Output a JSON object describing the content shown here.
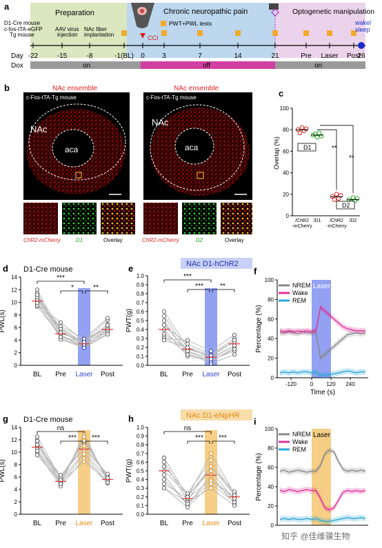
{
  "panel_labels": [
    "a",
    "b",
    "c",
    "d",
    "e",
    "f",
    "g",
    "h",
    "i"
  ],
  "timeline": {
    "left_notes": [
      "D1-Cre mouse",
      "c-fos-tTA-eGFP",
      "Tg mouse"
    ],
    "prep_title": "Preparation",
    "prep_notes": [
      [
        "AAV virus",
        "injection"
      ],
      [
        "NAc  fiber",
        "implantation"
      ]
    ],
    "pain_title": "Chronic neuropathic pain",
    "pain_note": "PWT+PWL tests",
    "opto_title": "Optogenetic manipulation",
    "cci_label": "CCI",
    "wake_label": [
      "wake/",
      "sleep"
    ],
    "day_label": "Day",
    "days": [
      "-22",
      "-15",
      "-8",
      "-1(BL)",
      "0",
      "3",
      "7",
      "14",
      "21",
      "Pre",
      "Laser",
      "Post",
      "26"
    ],
    "dox_label": "Dox",
    "dox_states": [
      "on",
      "off",
      "on"
    ],
    "colors": {
      "prep": "#dbe7bf",
      "pain": "#bcd7ee",
      "opto": "#ecd3ec",
      "square": "#f2a92b",
      "dox_on": "#9a9a9a",
      "dox_off": "#d23fa0",
      "cci": "#d22020",
      "wake": "#1d2cc8"
    }
  },
  "panel_b": {
    "images": [
      {
        "title": "NAc ensemble",
        "mouse": "c-Fos-tTA-Tg mouse",
        "region": "NAc",
        "core": "aca",
        "insets": [
          "ChR2-mCherry",
          "D1",
          "Overlay"
        ]
      },
      {
        "title": "NAc ensemble",
        "mouse": "c-Fos-tTA-Tg mouse",
        "region": "NAc",
        "core": "aca",
        "insets": [
          "ChR2-mCherry",
          "D2",
          "Overlay"
        ]
      }
    ]
  },
  "panel_c": {
    "ylabel": "Overlap (%)",
    "yticks": [
      "0",
      "20",
      "40",
      "60",
      "80",
      "100"
    ],
    "xticks": [
      [
        "/ChR2",
        "-mCherry"
      ],
      [
        "/D1",
        ""
      ],
      [
        "/ChR2",
        "-mCherry"
      ],
      [
        "/D2",
        ""
      ]
    ],
    "box1": "D1",
    "box2": "D2",
    "sig": [
      "**",
      "**"
    ],
    "chart_data": {
      "type": "scatter",
      "ylim": [
        0,
        100
      ],
      "series": [
        {
          "values": [
            80,
            77,
            82,
            79,
            81
          ]
        },
        {
          "values": [
            75,
            76,
            73,
            77,
            74
          ]
        },
        {
          "values": [
            18,
            15,
            20,
            16,
            19
          ]
        },
        {
          "values": [
            15,
            13,
            17,
            14,
            16
          ]
        }
      ]
    }
  },
  "chart_data": [
    {
      "type": "line",
      "panel": "d",
      "title": "D1-Cre mouse",
      "ylabel": "PWL(s)",
      "ylim": [
        0,
        14
      ],
      "yticks": [
        "0",
        "2",
        "4",
        "6",
        "8",
        "10",
        "12",
        "14"
      ],
      "categories": [
        "BL",
        "Pre",
        "Laser",
        "Post"
      ],
      "means": [
        10.2,
        5.0,
        3.4,
        5.7
      ],
      "lines": [
        [
          12,
          5,
          4,
          6
        ],
        [
          11.5,
          4.6,
          3,
          5.5
        ],
        [
          11,
          6,
          3.5,
          6.5
        ],
        [
          10.5,
          5.5,
          3.2,
          5.9
        ],
        [
          10,
          4.3,
          2.9,
          5
        ],
        [
          9.7,
          6.8,
          3.8,
          7.2
        ],
        [
          9.3,
          4.8,
          3.1,
          5.3
        ],
        [
          10.8,
          5.2,
          3.6,
          6.1
        ],
        [
          11.2,
          4.1,
          2.8,
          4.9
        ],
        [
          9.5,
          6.2,
          4.2,
          7.5
        ],
        [
          10.3,
          5.8,
          3.3,
          5.7
        ],
        [
          9.9,
          4.5,
          3.7,
          6.4
        ]
      ],
      "sig": [
        "***",
        "*",
        "**"
      ]
    },
    {
      "type": "line",
      "panel": "e",
      "title": "NAc D1-hChR2",
      "ylabel": "PWT(g)",
      "ylim": [
        0,
        1.0
      ],
      "yticks": [
        "0.0",
        "0.1",
        "0.2",
        "0.3",
        "0.4",
        "0.5",
        "0.6",
        "0.7",
        "0.8",
        "0.9",
        "1.0"
      ],
      "categories": [
        "BL",
        "Pre",
        "Laser",
        "Post"
      ],
      "means": [
        0.4,
        0.18,
        0.09,
        0.24
      ],
      "lines": [
        [
          0.6,
          0.2,
          0.08,
          0.22
        ],
        [
          0.55,
          0.16,
          0.04,
          0.2
        ],
        [
          0.45,
          0.24,
          0.12,
          0.3
        ],
        [
          0.4,
          0.1,
          0.06,
          0.16
        ],
        [
          0.35,
          0.18,
          0.1,
          0.26
        ],
        [
          0.32,
          0.14,
          0.02,
          0.12
        ],
        [
          0.3,
          0.28,
          0.16,
          0.34
        ],
        [
          0.5,
          0.12,
          0.05,
          0.18
        ],
        [
          0.28,
          0.2,
          0.11,
          0.28
        ],
        [
          0.45,
          0.16,
          0.07,
          0.22
        ]
      ],
      "sig": [
        "***",
        "***",
        "**"
      ]
    },
    {
      "type": "line",
      "panel": "f",
      "ylabel": "Percentage (%)",
      "xlabel": "Time (s)",
      "laser": "Laser",
      "ylim": [
        0,
        100
      ],
      "yticks": [
        "0",
        "20",
        "40",
        "60",
        "80",
        "100"
      ],
      "xticks": [
        "-120",
        "0",
        "120",
        "240"
      ],
      "series": [
        {
          "name": "NREM"
        },
        {
          "name": "Wake"
        },
        {
          "name": "REM"
        }
      ]
    },
    {
      "type": "line",
      "panel": "g",
      "title": "D1-Cre mouse",
      "ylabel": "PWL(s)",
      "ylim": [
        0,
        14
      ],
      "yticks": [
        "0",
        "2",
        "4",
        "6",
        "8",
        "10",
        "12",
        "14"
      ],
      "categories": [
        "BL",
        "Pre",
        "Laser",
        "Post"
      ],
      "means": [
        10.8,
        5.3,
        10.5,
        5.6
      ],
      "lines": [
        [
          12,
          5,
          12.5,
          5.5
        ],
        [
          11.5,
          4.7,
          13,
          5.2
        ],
        [
          11,
          6,
          11,
          6.2
        ],
        [
          10.5,
          5.4,
          10,
          5.8
        ],
        [
          10,
          4.5,
          9,
          5
        ],
        [
          12.5,
          5.8,
          12,
          6
        ],
        [
          9.5,
          5.2,
          8.5,
          5.4
        ],
        [
          11.2,
          6.3,
          10.5,
          6.5
        ],
        [
          10.2,
          4.9,
          9.7,
          5.1
        ],
        [
          11.8,
          5.5,
          11.8,
          5.9
        ]
      ],
      "sig": [
        "ns",
        "***",
        "***"
      ]
    },
    {
      "type": "line",
      "panel": "h",
      "title": "NAc D1-eNpHR",
      "ylabel": "PWT(g)",
      "ylim": [
        0,
        1.0
      ],
      "yticks": [
        "0.0",
        "0.1",
        "0.2",
        "0.3",
        "0.4",
        "0.5",
        "0.6",
        "0.7",
        "0.8",
        "0.9",
        "1.0"
      ],
      "categories": [
        "BL",
        "Pre",
        "Laser",
        "Post"
      ],
      "means": [
        0.5,
        0.18,
        0.45,
        0.2
      ],
      "lines": [
        [
          0.65,
          0.2,
          0.7,
          0.24
        ],
        [
          0.6,
          0.16,
          0.55,
          0.22
        ],
        [
          0.5,
          0.22,
          0.5,
          0.16
        ],
        [
          0.45,
          0.1,
          0.45,
          0.12
        ],
        [
          0.35,
          0.18,
          0.4,
          0.2
        ],
        [
          0.3,
          0.14,
          0.3,
          0.1
        ],
        [
          0.65,
          0.2,
          0.55,
          0.26
        ],
        [
          0.4,
          0.12,
          0.38,
          0.18
        ],
        [
          0.55,
          0.24,
          0.62,
          0.22
        ],
        [
          0.3,
          0.08,
          0.35,
          0.14
        ]
      ],
      "sig": [
        "ns",
        "***",
        "***"
      ]
    },
    {
      "type": "line",
      "panel": "i",
      "ylabel": "Percentage (%)",
      "laser": "Laser",
      "ylim": [
        0,
        100
      ],
      "yticks": [
        "0",
        "20",
        "40",
        "60",
        "80",
        "100"
      ],
      "series": [
        {
          "name": "NREM"
        },
        {
          "name": "Wake"
        },
        {
          "name": "REM"
        }
      ]
    }
  ],
  "watermark": "知乎 @佳维骥生物"
}
